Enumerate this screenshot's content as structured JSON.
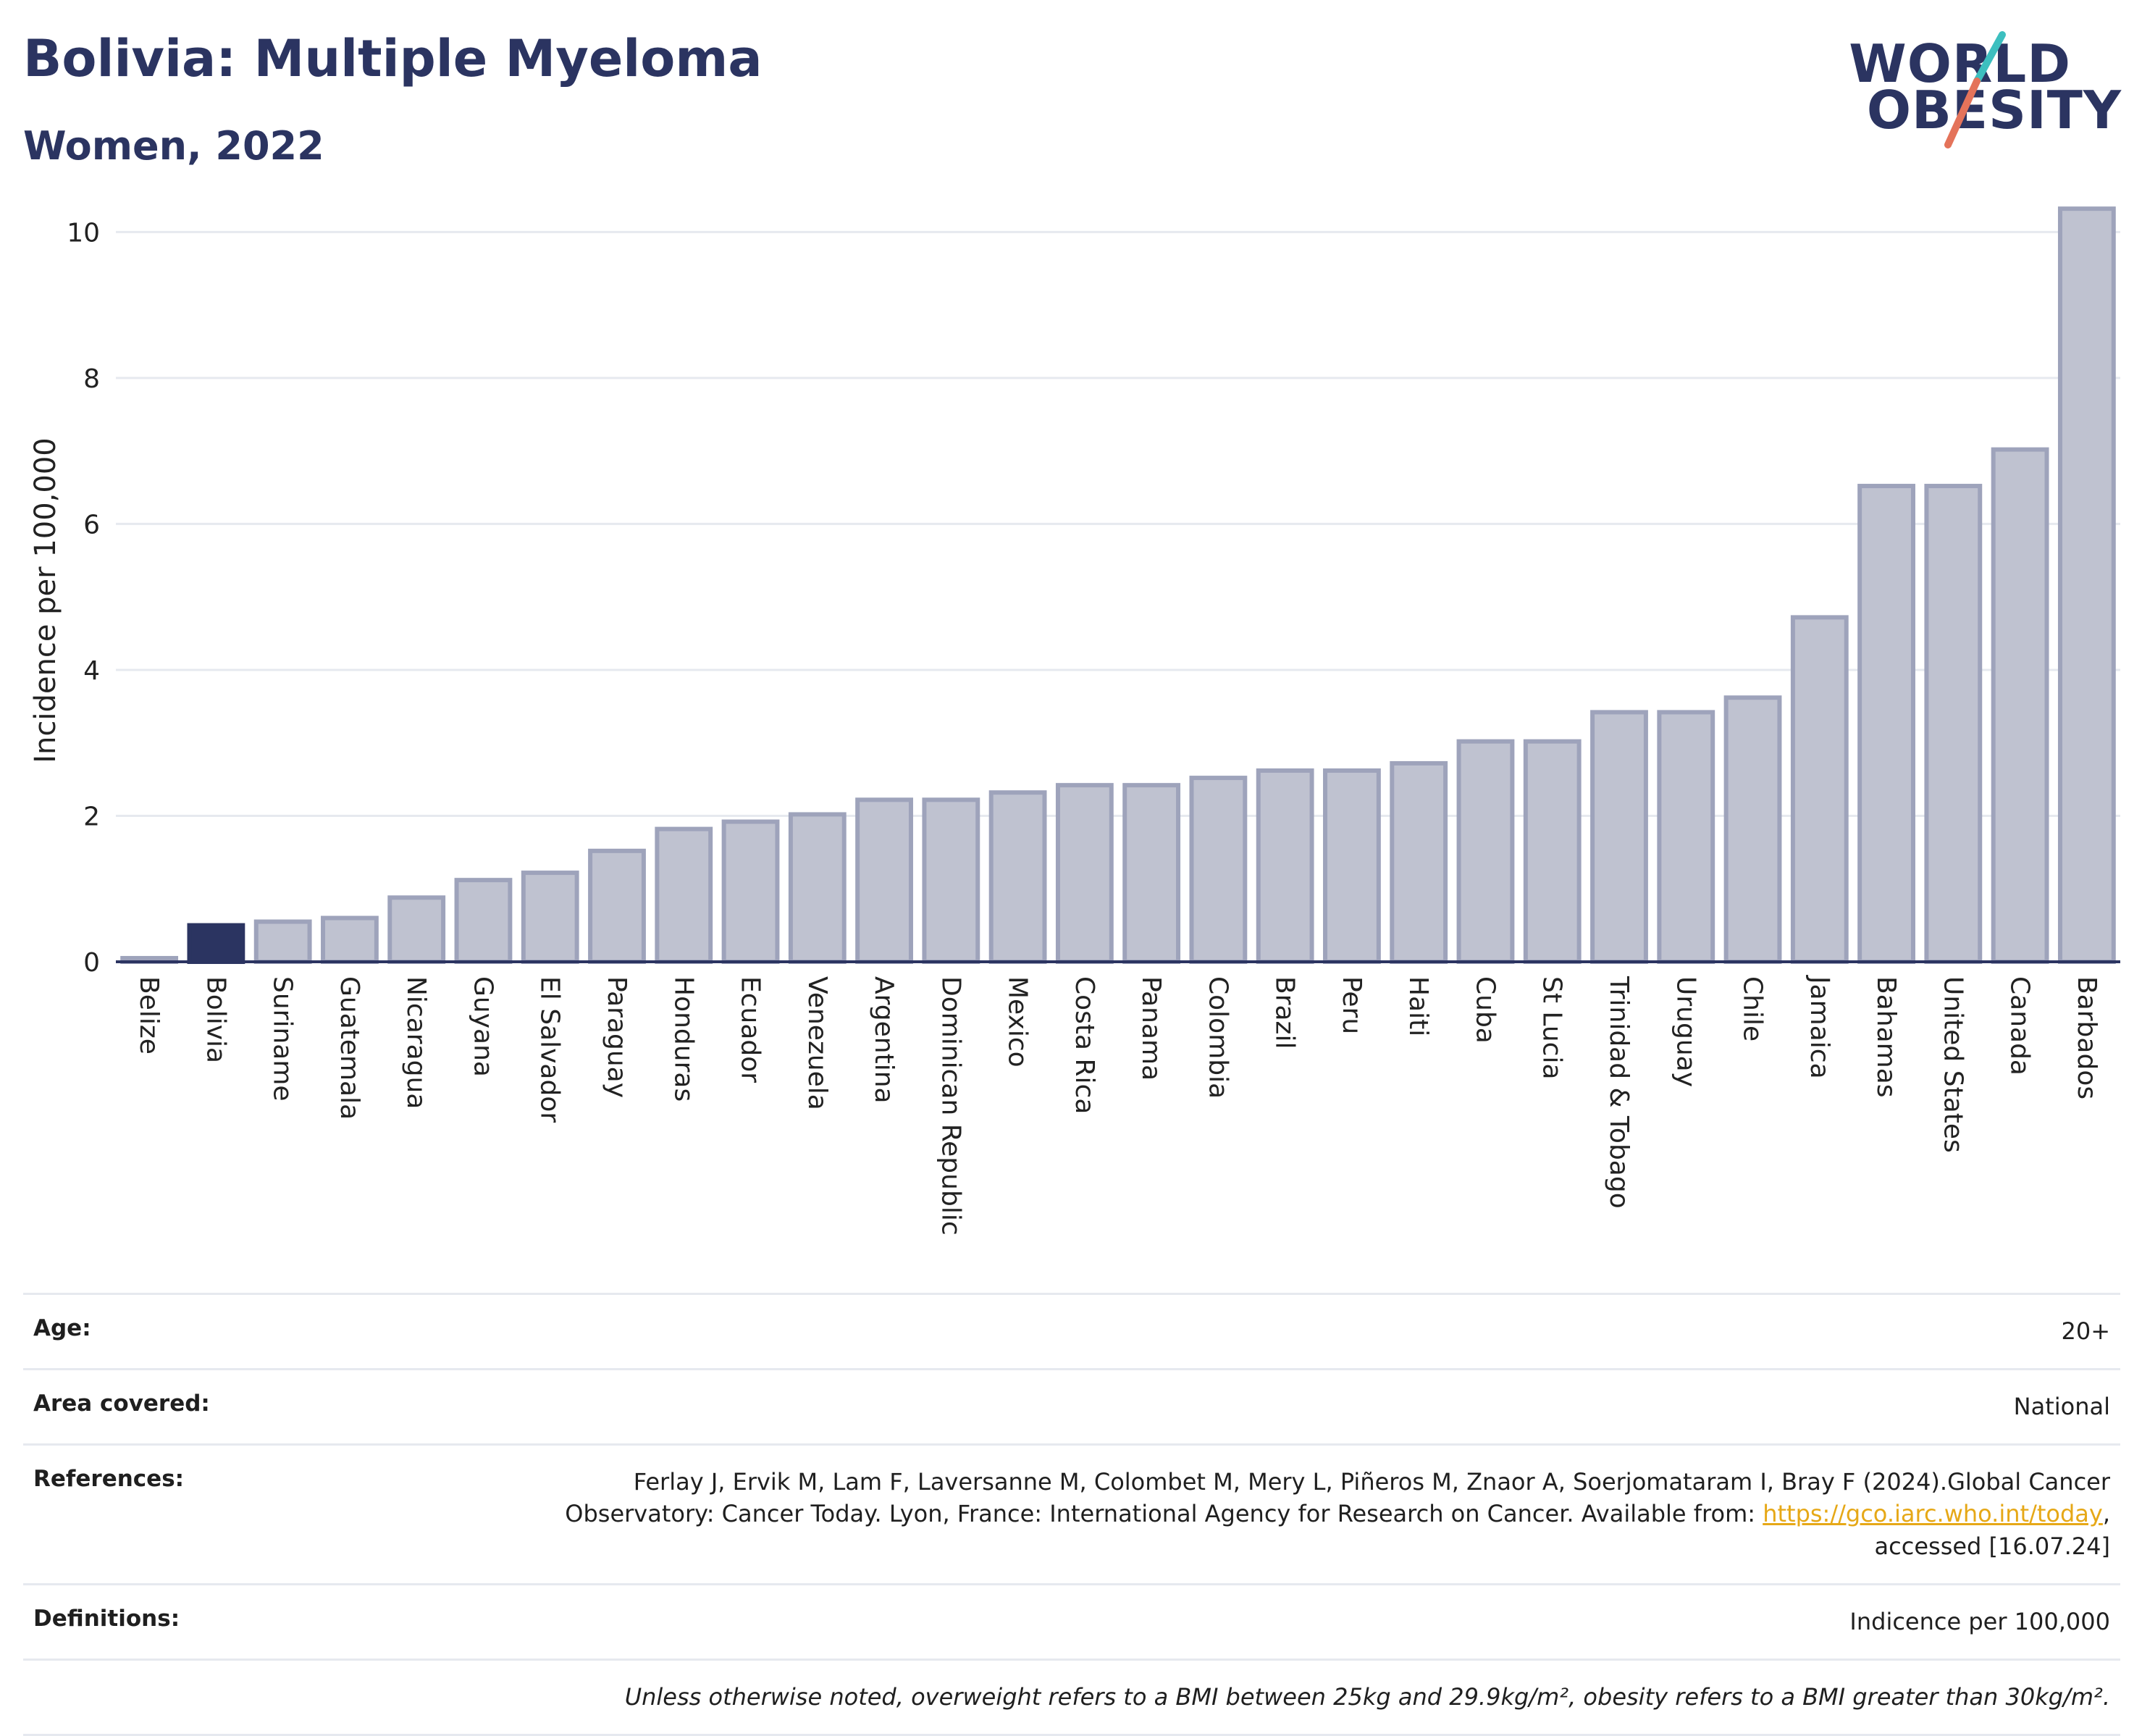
{
  "header": {
    "title": "Bolivia: Multiple Myeloma",
    "subtitle": "Women, 2022"
  },
  "logo": {
    "line1": "WORLD",
    "line2": "OBESITY",
    "colors": {
      "text": "#2b3461",
      "slash_top": "#3dbfbf",
      "slash_bottom": "#e4735a"
    }
  },
  "chart_data": {
    "type": "bar",
    "title": "Bolivia: Multiple Myeloma",
    "subtitle": "Women, 2022",
    "ylabel": "Incidence per 100,000",
    "xlabel": "",
    "ylim": [
      0,
      10.5
    ],
    "yticks": [
      0,
      2,
      4,
      6,
      8,
      10
    ],
    "grid": true,
    "highlight": "Bolivia",
    "colors": {
      "bar": "#bfc2d0",
      "bar_border": "#9ea3bb",
      "highlight": "#2b3461",
      "grid": "#e6e9ef",
      "axis": "#2b3461"
    },
    "categories": [
      "Belize",
      "Bolivia",
      "Suriname",
      "Guatemala",
      "Nicaragua",
      "Guyana",
      "El Salvador",
      "Paraguay",
      "Honduras",
      "Ecuador",
      "Venezuela",
      "Argentina",
      "Dominican Republic",
      "Mexico",
      "Costa Rica",
      "Panama",
      "Colombia",
      "Brazil",
      "Peru",
      "Haiti",
      "Cuba",
      "St Lucia",
      "Trinidad & Tobago",
      "Uruguay",
      "Chile",
      "Jamaica",
      "Bahamas",
      "United States",
      "Canada",
      "Barbados"
    ],
    "values": [
      0.05,
      0.5,
      0.55,
      0.6,
      0.88,
      1.12,
      1.22,
      1.52,
      1.82,
      1.92,
      2.02,
      2.22,
      2.22,
      2.32,
      2.42,
      2.42,
      2.52,
      2.62,
      2.62,
      2.72,
      3.02,
      3.02,
      3.42,
      3.42,
      3.62,
      4.72,
      6.52,
      6.52,
      7.02,
      10.32
    ]
  },
  "meta": {
    "age_label": "Age:",
    "age_value": "20+",
    "area_label": "Area covered:",
    "area_value": "National",
    "references_label": "References:",
    "references_text_1": "Ferlay J, Ervik M, Lam F, Laversanne M, Colombet M, Mery L, Piñeros M, Znaor A, Soerjomataram I, Bray F (2024).Global Cancer Observatory: Cancer Today. Lyon, France: International Agency for Research on Cancer. Available from: ",
    "references_link": "https://gco.iarc.who.int/today",
    "references_text_2": ", accessed [16.07.24]",
    "definitions_label": "Definitions:",
    "definitions_value": "Indicence per 100,000",
    "note": "Unless otherwise noted, overweight refers to a BMI between 25kg and 29.9kg/m², obesity refers to a BMI greater than 30kg/m²."
  }
}
